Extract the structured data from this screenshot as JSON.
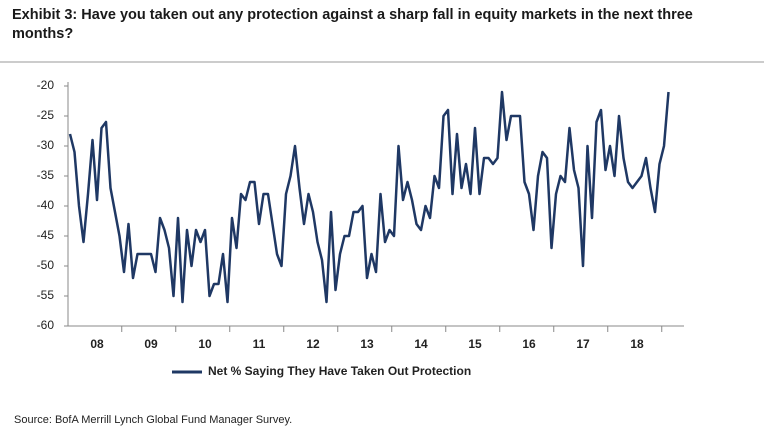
{
  "chart_data": {
    "type": "line",
    "title": "Exhibit 3: Have you taken out any protection against a sharp fall in equity markets in the next three months?",
    "source": "Source: BofA Merrill Lynch Global Fund Manager Survey.",
    "categories": [
      null,
      null,
      null,
      null,
      null,
      null,
      "08",
      null,
      null,
      null,
      null,
      null,
      null,
      null,
      null,
      null,
      null,
      null,
      "09",
      null,
      null,
      null,
      null,
      null,
      null,
      null,
      null,
      null,
      null,
      null,
      "10",
      null,
      null,
      null,
      null,
      null,
      null,
      null,
      null,
      null,
      null,
      null,
      "11",
      null,
      null,
      null,
      null,
      null,
      null,
      null,
      null,
      null,
      null,
      null,
      "12",
      null,
      null,
      null,
      null,
      null,
      null,
      null,
      null,
      null,
      null,
      null,
      "13",
      null,
      null,
      null,
      null,
      null,
      null,
      null,
      null,
      null,
      null,
      null,
      "14",
      null,
      null,
      null,
      null,
      null,
      null,
      null,
      null,
      null,
      null,
      null,
      "15",
      null,
      null,
      null,
      null,
      null,
      null,
      null,
      null,
      null,
      null,
      null,
      "16",
      null,
      null,
      null,
      null,
      null,
      null,
      null,
      null,
      null,
      null,
      null,
      "17",
      null,
      null,
      null,
      null,
      null,
      null,
      null,
      null,
      null,
      null,
      null,
      "18",
      null,
      null,
      null,
      null,
      null,
      null,
      null
    ],
    "series": [
      {
        "name": "Net % Saying They Have Taken Out Protection",
        "color": "#1f3864",
        "values": [
          -28,
          -31,
          -40,
          -46,
          -38,
          -29,
          -39,
          -27,
          -26,
          -37,
          -41,
          -45,
          -51,
          -43,
          -52,
          -48,
          -48,
          -48,
          -48,
          -51,
          -42,
          -44,
          -47,
          -55,
          -42,
          -56,
          -44,
          -50,
          -44,
          -46,
          -44,
          -55,
          -53,
          -53,
          -48,
          -56,
          -42,
          -47,
          -38,
          -39,
          -36,
          -36,
          -43,
          -38,
          -38,
          -43,
          -48,
          -50,
          -38,
          -35,
          -30,
          -37,
          -43,
          -38,
          -41,
          -46,
          -49,
          -56,
          -41,
          -54,
          -48,
          -45,
          -45,
          -41,
          -41,
          -40,
          -52,
          -48,
          -51,
          -38,
          -46,
          -44,
          -45,
          -30,
          -39,
          -36,
          -39,
          -43,
          -44,
          -40,
          -42,
          -35,
          -37,
          -25,
          -24,
          -38,
          -28,
          -37,
          -33,
          -38,
          -27,
          -38,
          -32,
          -32,
          -33,
          -32,
          -21,
          -29,
          -25,
          -25,
          -25,
          -36,
          -38,
          -44,
          -35,
          -31,
          -32,
          -47,
          -38,
          -35,
          -36,
          -27,
          -34,
          -37,
          -50,
          -30,
          -42,
          -26,
          -24,
          -34,
          -30,
          -35,
          -25,
          -32,
          -36,
          -37,
          -36,
          -35,
          -32,
          -37,
          -41,
          -33,
          -30,
          -21
        ]
      }
    ],
    "ylim": [
      -60,
      -20
    ],
    "yticks": [
      -60,
      -55,
      -50,
      -45,
      -40,
      -35,
      -30,
      -25,
      -20
    ],
    "grid": false,
    "legend": "bottom"
  }
}
